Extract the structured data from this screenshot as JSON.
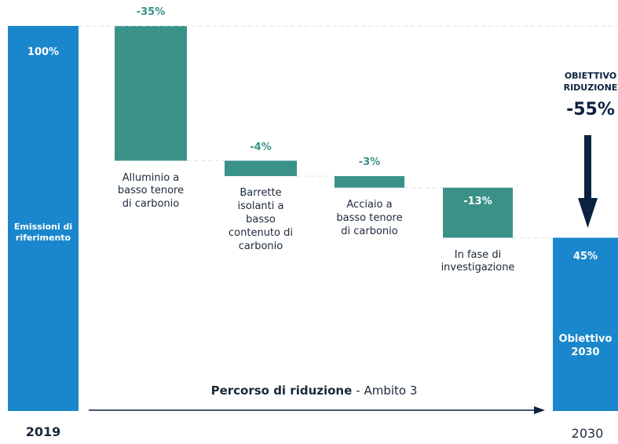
{
  "chart_data": {
    "type": "waterfall",
    "categories": [
      "Emissioni di riferimento",
      "Alluminio a basso tenore di carbonio",
      "Barrette isolanti a basso contenuto di carbonio",
      "Acciaio a basso tenore di carbonio",
      "In fase di investigazione",
      "Obiettivo 2030"
    ],
    "values": [
      100,
      -35,
      -4,
      -3,
      -13,
      45
    ],
    "value_labels": [
      "100%",
      "-35%",
      "-4%",
      "-3%",
      "-13%",
      "45%"
    ],
    "x_labels": [
      "2019",
      "2030"
    ],
    "ylim": [
      0,
      100
    ],
    "colors": {
      "total": "#1a87cc",
      "step": "#3a9188"
    },
    "annotation": {
      "title": "OBIETTIVO RIDUZIONE",
      "value": -55,
      "value_label": "-55%"
    },
    "axis_label": {
      "bold": "Percorso di riduzione",
      "regular": "- Ambito 3"
    }
  }
}
